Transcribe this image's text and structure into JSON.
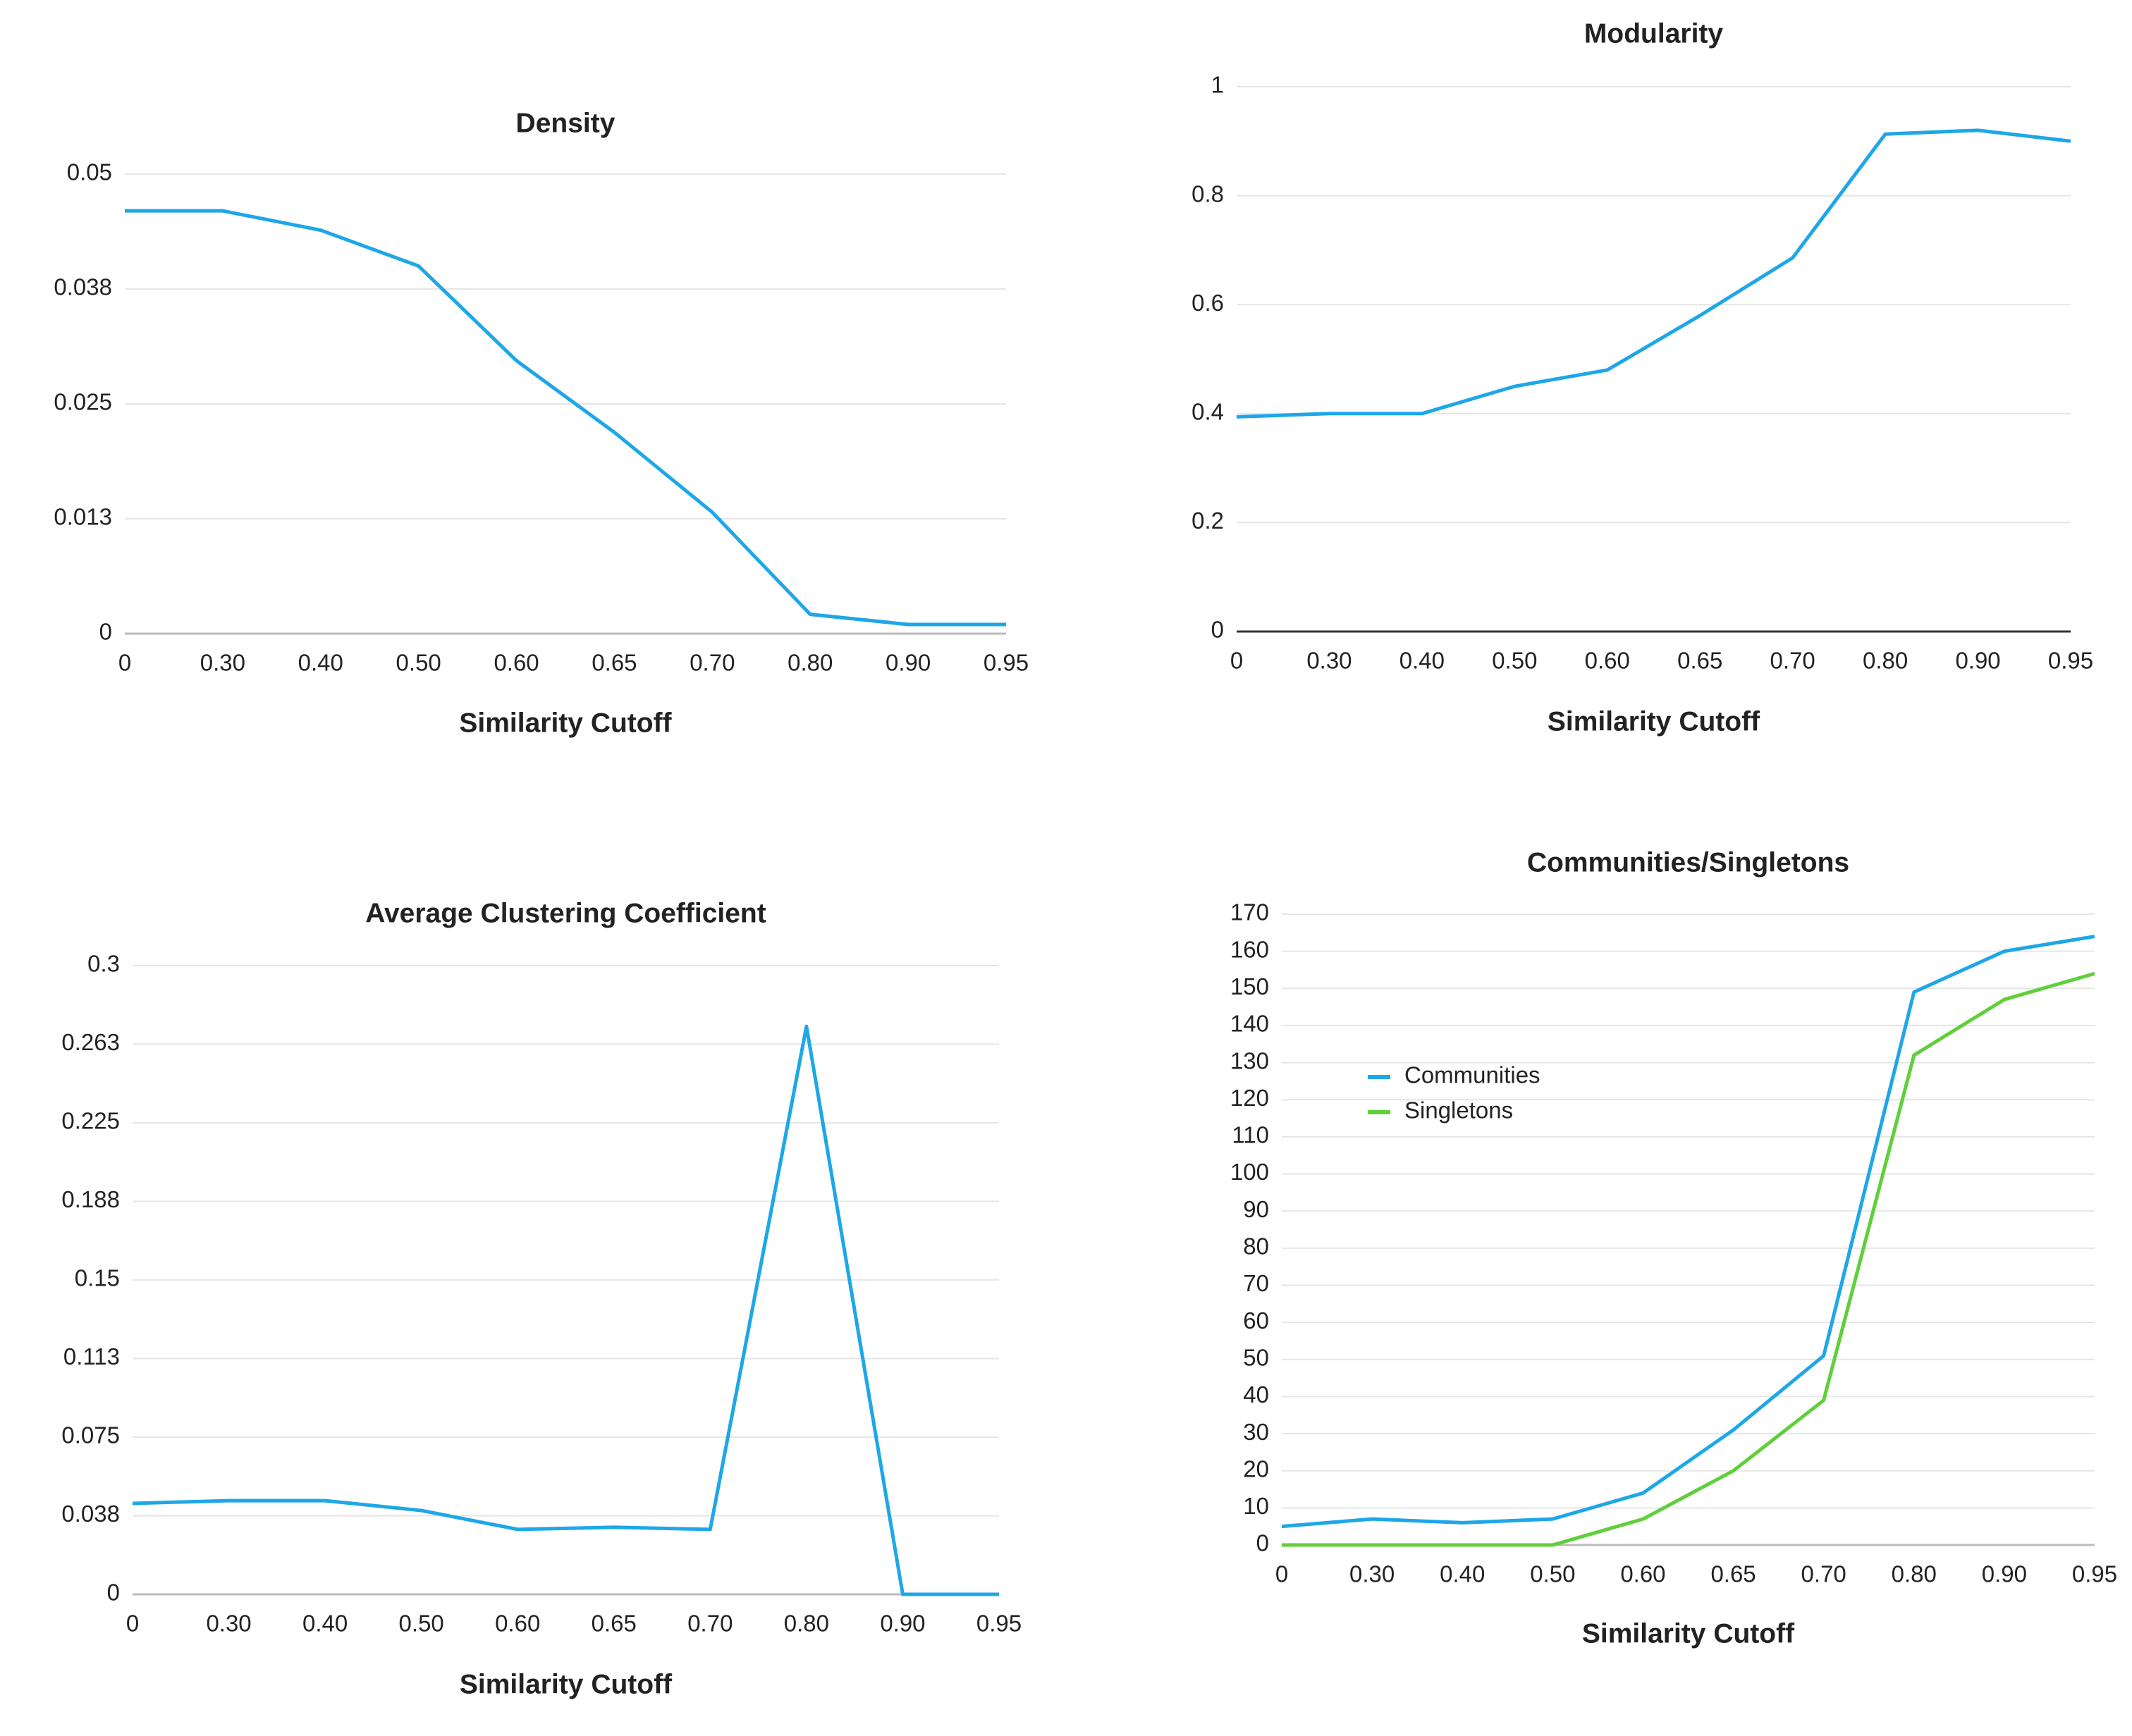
{
  "chart_data": [
    {
      "type": "line",
      "title": "Density",
      "xlabel": "Similarity Cutoff",
      "categories": [
        "0",
        "0.30",
        "0.40",
        "0.50",
        "0.60",
        "0.65",
        "0.70",
        "0.80",
        "0.90",
        "0.95"
      ],
      "values": [
        0.046,
        0.046,
        0.0439,
        0.04,
        0.0297,
        0.0219,
        0.0132,
        0.0021,
        0.001,
        0.001
      ],
      "color": "#1ea7e8",
      "ylim": [
        0,
        0.05
      ],
      "yticks": [
        0,
        {
          "value": 0.0125,
          "label": "0.013"
        },
        0.025,
        {
          "value": 0.0375,
          "label": "0.038"
        },
        0.05
      ],
      "grid": true
    },
    {
      "type": "line",
      "title": "Modularity",
      "xlabel": "Similarity Cutoff",
      "categories": [
        "0",
        "0.30",
        "0.40",
        "0.50",
        "0.60",
        "0.65",
        "0.70",
        "0.80",
        "0.90",
        "0.95"
      ],
      "values": [
        0.394,
        0.4,
        0.4,
        0.45,
        0.48,
        0.58,
        0.686,
        0.913,
        0.92,
        0.9
      ],
      "color": "#1ea7e8",
      "ylim": [
        0,
        1
      ],
      "yticks": [
        0,
        0.2,
        0.4,
        0.6,
        0.8,
        1
      ],
      "grid": true
    },
    {
      "type": "line",
      "title": "Average Clustering Coefficient",
      "xlabel": "Similarity Cutoff",
      "categories": [
        "0",
        "0.30",
        "0.40",
        "0.50",
        "0.60",
        "0.65",
        "0.70",
        "0.80",
        "0.90",
        "0.95"
      ],
      "values": [
        0.0434,
        0.0447,
        0.0447,
        0.04,
        0.031,
        0.032,
        0.031,
        0.271,
        0,
        0
      ],
      "color": "#1ea7e8",
      "ylim": [
        0,
        0.3
      ],
      "yticks": [
        0,
        {
          "value": 0.0375,
          "label": "0.038"
        },
        0.075,
        {
          "value": 0.1125,
          "label": "0.113"
        },
        0.15,
        {
          "value": 0.1875,
          "label": "0.188"
        },
        0.225,
        {
          "value": 0.2625,
          "label": "0.263"
        },
        0.3
      ],
      "grid": true
    },
    {
      "type": "line",
      "title": "Communities/Singletons",
      "xlabel": "Similarity Cutoff",
      "categories": [
        "0",
        "0.30",
        "0.40",
        "0.50",
        "0.60",
        "0.65",
        "0.70",
        "0.80",
        "0.90",
        "0.95"
      ],
      "series": [
        {
          "name": "Communities",
          "color": "#1ea7e8",
          "values": [
            5,
            7,
            6,
            7,
            14,
            31,
            51,
            149,
            160,
            164
          ]
        },
        {
          "name": "Singletons",
          "color": "#5fcf3a",
          "values": [
            0,
            0,
            0,
            0,
            7,
            20,
            39,
            132,
            147,
            154
          ]
        }
      ],
      "ylim": [
        0,
        170
      ],
      "yticks": [
        0,
        10,
        20,
        30,
        40,
        50,
        60,
        70,
        80,
        90,
        100,
        110,
        120,
        130,
        140,
        150,
        160,
        170
      ],
      "grid": true,
      "legend": "upper left"
    }
  ]
}
